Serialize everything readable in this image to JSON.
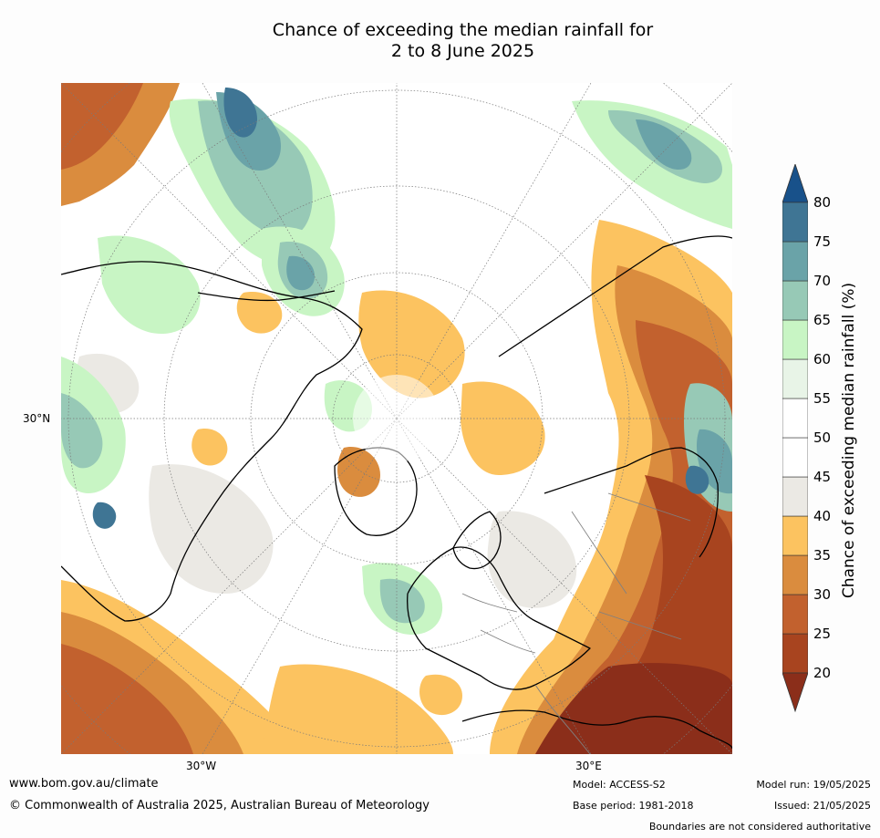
{
  "title_line1": "Chance of exceeding the median rainfall for",
  "title_line2": "2 to 8 June 2025",
  "map": {
    "projection": "north-polar-stereographic",
    "lat_labels": [
      "30°N"
    ],
    "lon_labels": [
      "30°W",
      "30°E"
    ]
  },
  "colorbar": {
    "label": "Chance of exceeding median rainfall (%)",
    "ticks": [
      "20",
      "25",
      "30",
      "35",
      "40",
      "45",
      "50",
      "55",
      "60",
      "65",
      "70",
      "75",
      "80"
    ],
    "colors": [
      "#8b2e1a",
      "#a8441f",
      "#c2612e",
      "#da8c3e",
      "#fcc360",
      "#ebe9e4",
      "#ffffff",
      "#ffffff",
      "#e8f4e7",
      "#c8f5c4",
      "#97c9b6",
      "#6aa3a8",
      "#3f7594",
      "#18518a"
    ]
  },
  "footer": {
    "website": "www.bom.gov.au/climate",
    "copyright": "© Commonwealth of Australia 2025, Australian Bureau of Meteorology",
    "model": "Model: ACCESS-S2",
    "base_period": "Base period: 1981-2018",
    "model_run": "Model run: 19/05/2025",
    "issued": "Issued: 21/05/2025",
    "disclaimer": "Boundaries are not considered authoritative"
  }
}
